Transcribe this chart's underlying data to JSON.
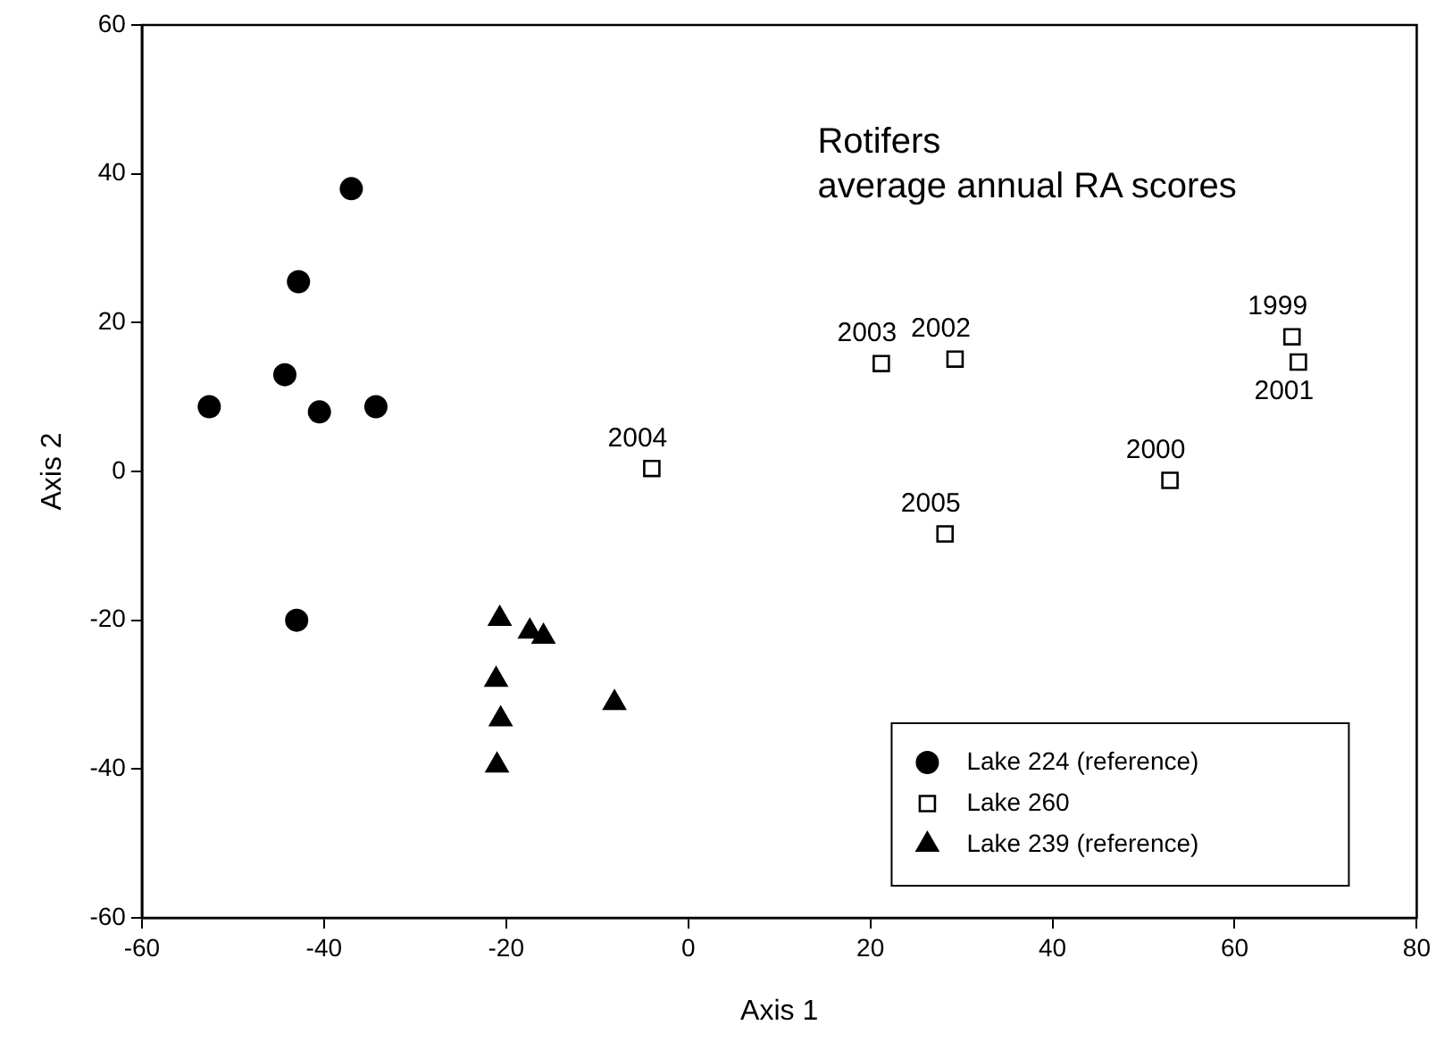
{
  "chart_data": {
    "type": "scatter",
    "title": "Rotifers",
    "subtitle": "average annual RA scores",
    "xlabel": "Axis 1",
    "ylabel": "Axis 2",
    "xlim": [
      -60,
      80
    ],
    "xticks": [
      -60,
      -40,
      -20,
      0,
      20,
      40,
      60,
      80
    ],
    "ylim": [
      -60,
      60
    ],
    "yticks": [
      -60,
      -40,
      -20,
      0,
      20,
      40,
      60
    ],
    "grid": false,
    "legend": "bottom right",
    "series": [
      {
        "name": "Lake 224 (reference)",
        "color": "#000000",
        "marker": "circle",
        "x": [
          -37.0,
          -42.8,
          -44.3,
          -52.6,
          -40.5,
          -34.3,
          -43.0
        ],
        "values": [
          38.0,
          25.5,
          13.0,
          8.7,
          8.0,
          8.7,
          -20.0
        ]
      },
      {
        "name": "Lake 260",
        "color": "#000000",
        "marker": "square",
        "x": [
          -4.0,
          21.2,
          29.3,
          28.2,
          52.9,
          66.3,
          67.0
        ],
        "values": [
          0.4,
          14.5,
          15.1,
          -8.4,
          -1.2,
          18.1,
          14.7
        ]
      },
      {
        "name": "Lake 239 (reference)",
        "color": "#000000",
        "marker": "triangle",
        "x": [
          -20.7,
          -17.4,
          -15.9,
          -21.1,
          -20.6,
          -21.0,
          -8.1
        ],
        "values": [
          -19.8,
          -21.5,
          -22.2,
          -28.0,
          -33.3,
          -39.5,
          -31.1
        ]
      }
    ],
    "annotations": [
      {
        "text": "2004",
        "x": -4.0,
        "y": 0.4
      },
      {
        "text": "2003",
        "x": 21.2,
        "y": 14.5
      },
      {
        "text": "2002",
        "x": 29.3,
        "y": 15.1
      },
      {
        "text": "2005",
        "x": 28.2,
        "y": -8.4
      },
      {
        "text": "2000",
        "x": 52.9,
        "y": -1.2
      },
      {
        "text": "1999",
        "x": 66.3,
        "y": 18.1
      },
      {
        "text": "2001",
        "x": 67.0,
        "y": 14.7
      }
    ]
  }
}
